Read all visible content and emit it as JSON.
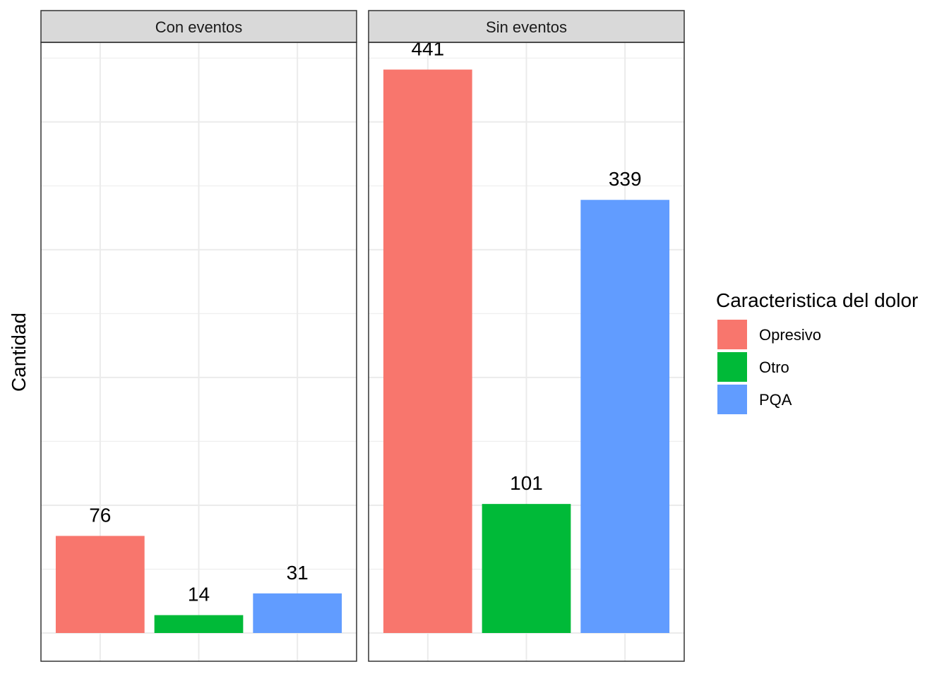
{
  "chart_data": {
    "type": "bar",
    "ylabel": "Cantidad",
    "xlabel": "",
    "ylim": [
      0,
      480
    ],
    "panels": [
      {
        "title": "Con eventos",
        "categories": [
          "Opresivo",
          "Otro",
          "PQA"
        ],
        "values": [
          76,
          14,
          31
        ],
        "labels": [
          "76",
          "14",
          "31"
        ]
      },
      {
        "title": "Sin eventos",
        "categories": [
          "Opresivo",
          "Otro",
          "PQA"
        ],
        "values": [
          441,
          101,
          339
        ],
        "labels": [
          "441",
          "101",
          "339"
        ]
      }
    ],
    "legend": {
      "title": "Caracteristica del dolor",
      "position": "right",
      "items": [
        {
          "name": "Opresivo",
          "color": "#F8766D"
        },
        {
          "name": "Otro",
          "color": "#00BA38"
        },
        {
          "name": "PQA",
          "color": "#619CFF"
        }
      ]
    },
    "grid": true,
    "strip_color": "#D9D9D9",
    "panel_border_color": "#333333",
    "grid_color": "#EBEBEB"
  }
}
